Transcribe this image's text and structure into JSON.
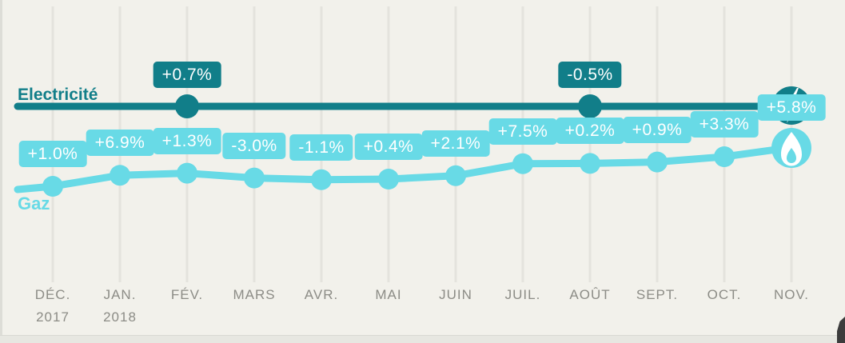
{
  "chart_data": {
    "type": "line",
    "title": "",
    "categories": [
      "DÉC.",
      "JAN.",
      "FÉV.",
      "MARS",
      "AVR.",
      "MAI",
      "JUIN",
      "JUIL.",
      "AOÛT",
      "SEPT.",
      "OCT.",
      "NOV."
    ],
    "category_sublabels": {
      "0": "2017",
      "1": "2018"
    },
    "grid": "vertical-only",
    "legend_position": "on-line-left",
    "series": [
      {
        "name": "Electricité",
        "color": "#117E89",
        "style": "flat-annotated-line",
        "end_icon": "lightning-bolt-icon",
        "annotations": [
          {
            "category": "FÉV.",
            "index": 2,
            "value_pct": 0.7,
            "label": "+0.7%"
          },
          {
            "category": "AOÛT",
            "index": 8,
            "value_pct": -0.5,
            "label": "-0.5%"
          }
        ]
      },
      {
        "name": "Gaz",
        "color": "#68DAE6",
        "style": "cumulative-line",
        "end_icon": "flame-icon",
        "values_pct": [
          1.0,
          6.9,
          1.3,
          -3.0,
          -1.1,
          0.4,
          2.1,
          7.5,
          0.2,
          0.9,
          3.3,
          5.8
        ],
        "labels": [
          "+1.0%",
          "+6.9%",
          "+1.3%",
          "-3.0%",
          "-1.1%",
          "+0.4%",
          "+2.1%",
          "+7.5%",
          "+0.2%",
          "+0.9%",
          "+3.3%",
          "+5.8%"
        ]
      }
    ]
  },
  "colors": {
    "background": "#F2F1EB",
    "gridline": "#E4E3DD",
    "electricity": "#117E89",
    "gas": "#68DAE6",
    "axis_text": "#8C8C86",
    "value_text": "#FFFFFF",
    "bottom_bar": "#E7E7E1",
    "cursor": "#3C3C3C"
  }
}
